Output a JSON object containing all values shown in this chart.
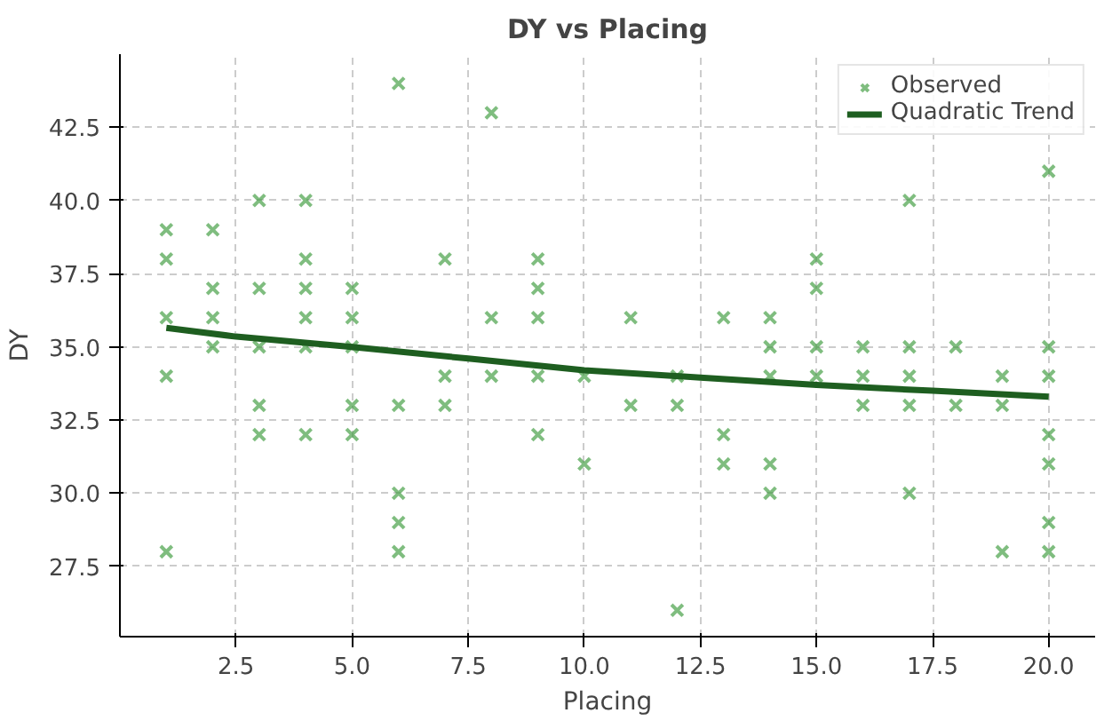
{
  "chart_data": {
    "type": "scatter",
    "title": "DY vs Placing",
    "xlabel": "Placing",
    "ylabel": "DY",
    "xlim": [
      0.0,
      21.0
    ],
    "ylim": [
      25.1,
      45.0
    ],
    "xticks": [
      {
        "value": 2.5,
        "label": "2.5"
      },
      {
        "value": 5,
        "label": "5.0"
      },
      {
        "value": 7.5,
        "label": "7.5"
      },
      {
        "value": 10,
        "label": "10.0"
      },
      {
        "value": 12.5,
        "label": "12.5"
      },
      {
        "value": 15,
        "label": "15.0"
      },
      {
        "value": 17.5,
        "label": "17.5"
      },
      {
        "value": 20,
        "label": "20.0"
      }
    ],
    "yticks": [
      27.5,
      {
        "value": 30,
        "label": "30.0"
      },
      32.5,
      {
        "value": 35,
        "label": "35.0"
      },
      37.5,
      {
        "value": 40,
        "label": "40.0"
      },
      42.5
    ],
    "grid": true,
    "legend": "top right",
    "series": [
      {
        "name": "Observed",
        "marker": "cross",
        "color": "#3a9a3a",
        "x": [
          1,
          1,
          1,
          1,
          1,
          2,
          2,
          2,
          2,
          3,
          3,
          3,
          3,
          3,
          4,
          4,
          4,
          4,
          4,
          4,
          5,
          5,
          5,
          5,
          5,
          6,
          6,
          6,
          6,
          6,
          7,
          7,
          7,
          8,
          8,
          8,
          9,
          9,
          9,
          9,
          9,
          10,
          10,
          11,
          11,
          12,
          12,
          12,
          13,
          13,
          13,
          14,
          14,
          14,
          14,
          14,
          15,
          15,
          15,
          15,
          16,
          16,
          16,
          17,
          17,
          17,
          17,
          17,
          18,
          18,
          19,
          19,
          19,
          20,
          20,
          20,
          20,
          20,
          20,
          20
        ],
        "values": [
          39,
          38,
          36,
          34,
          28,
          39,
          37,
          36,
          35,
          40,
          37,
          35,
          33,
          32,
          40,
          38,
          37,
          36,
          35,
          32,
          37,
          36,
          35,
          33,
          32,
          44,
          33,
          30,
          29,
          28,
          38,
          34,
          33,
          43,
          36,
          34,
          38,
          37,
          36,
          34,
          32,
          34,
          31,
          36,
          33,
          34,
          33,
          26,
          36,
          32,
          31,
          36,
          35,
          34,
          31,
          30,
          38,
          37,
          35,
          34,
          35,
          34,
          33,
          40,
          35,
          34,
          33,
          30,
          35,
          33,
          34,
          33,
          28,
          41,
          35,
          34,
          32,
          31,
          29,
          28
        ]
      },
      {
        "name": "Quadratic Trend",
        "type": "line",
        "line_style": "solid",
        "color": "#1e5e20",
        "x": [
          1,
          2.5,
          5,
          7.5,
          10,
          12.5,
          15,
          17.5,
          20
        ],
        "values": [
          35.65,
          35.35,
          35.0,
          34.6,
          34.2,
          33.95,
          33.7,
          33.5,
          33.3
        ]
      }
    ]
  }
}
